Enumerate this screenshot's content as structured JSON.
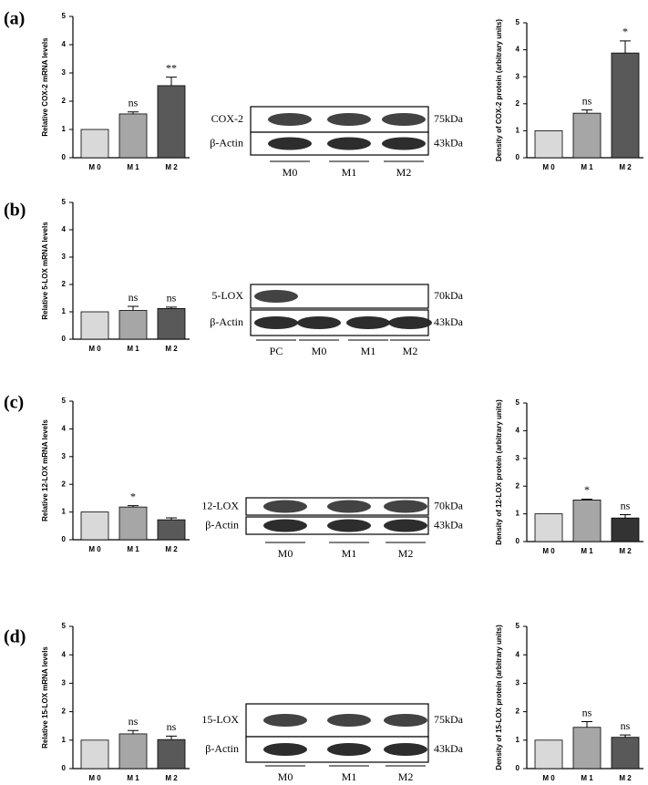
{
  "panel_labels": [
    "(a)",
    "(b)",
    "(c)",
    "(d)"
  ],
  "chart_data": [
    {
      "type": "bar",
      "y_label": "Relative COX-2 mRNA levels",
      "categories": [
        "M 0",
        "M 1",
        "M 2"
      ],
      "values": [
        1,
        1.55,
        2.55
      ],
      "errors": [
        0,
        0.07,
        0.3
      ],
      "colors": [
        "#d9d9d9",
        "#a6a6a6",
        "#595959"
      ],
      "ylim": [
        0,
        5
      ],
      "yticks": [
        0,
        1,
        2,
        3,
        4,
        5
      ],
      "annotations": [
        {
          "index": 1,
          "text": "ns"
        },
        {
          "index": 2,
          "text": "**"
        }
      ]
    },
    {
      "type": "bar",
      "y_label": "Density of COX-2 protein (arbitrary units)",
      "categories": [
        "M 0",
        "M 1",
        "M 2"
      ],
      "values": [
        1,
        1.65,
        3.88
      ],
      "errors": [
        0,
        0.12,
        0.45
      ],
      "colors": [
        "#d9d9d9",
        "#a6a6a6",
        "#595959"
      ],
      "ylim": [
        0,
        5
      ],
      "yticks": [
        0,
        1,
        2,
        3,
        4,
        5
      ],
      "annotations": [
        {
          "index": 1,
          "text": "ns"
        },
        {
          "index": 2,
          "text": "*"
        }
      ]
    },
    {
      "type": "bar",
      "y_label": "Relative 5-LOX mRNA levels",
      "categories": [
        "M 0",
        "M 1",
        "M 2"
      ],
      "values": [
        1,
        1.05,
        1.12
      ],
      "errors": [
        0,
        0.15,
        0.05
      ],
      "colors": [
        "#d9d9d9",
        "#a6a6a6",
        "#595959"
      ],
      "ylim": [
        0,
        5
      ],
      "yticks": [
        0,
        1,
        2,
        3,
        4,
        5
      ],
      "annotations": [
        {
          "index": 1,
          "text": "ns"
        },
        {
          "index": 2,
          "text": "ns"
        }
      ]
    },
    {
      "type": "bar",
      "y_label": "Relative 12-LOX mRNA levels",
      "categories": [
        "M 0",
        "M 1",
        "M 2"
      ],
      "values": [
        1,
        1.18,
        0.72
      ],
      "errors": [
        0,
        0.05,
        0.07
      ],
      "colors": [
        "#d9d9d9",
        "#a6a6a6",
        "#595959"
      ],
      "ylim": [
        0,
        5
      ],
      "yticks": [
        0,
        1,
        2,
        3,
        4,
        5
      ],
      "annotations": [
        {
          "index": 1,
          "text": "*"
        }
      ]
    },
    {
      "type": "bar",
      "y_label": "Density of 12-LOX protein (arbitrary units)",
      "categories": [
        "M 0",
        "M 1",
        "M 2"
      ],
      "values": [
        1,
        1.5,
        0.85
      ],
      "errors": [
        0,
        0.03,
        0.12
      ],
      "colors": [
        "#d9d9d9",
        "#a6a6a6",
        "#333333"
      ],
      "ylim": [
        0,
        5
      ],
      "yticks": [
        0,
        1,
        2,
        3,
        4,
        5
      ],
      "annotations": [
        {
          "index": 1,
          "text": "*"
        },
        {
          "index": 2,
          "text": "ns"
        }
      ]
    },
    {
      "type": "bar",
      "y_label": "Relative 15-LOX mRNA levels",
      "categories": [
        "M 0",
        "M 1",
        "M 2"
      ],
      "values": [
        1,
        1.22,
        1.02
      ],
      "errors": [
        0,
        0.12,
        0.12
      ],
      "colors": [
        "#d9d9d9",
        "#a6a6a6",
        "#595959"
      ],
      "ylim": [
        0,
        5
      ],
      "yticks": [
        0,
        1,
        2,
        3,
        4,
        5
      ],
      "annotations": [
        {
          "index": 1,
          "text": "ns"
        },
        {
          "index": 2,
          "text": "ns"
        }
      ]
    },
    {
      "type": "bar",
      "y_label": "Density of 15-LOX protein (arbitrary units)",
      "categories": [
        "M 0",
        "M 1",
        "M 2"
      ],
      "values": [
        1,
        1.45,
        1.1
      ],
      "errors": [
        0,
        0.2,
        0.08
      ],
      "colors": [
        "#d9d9d9",
        "#a6a6a6",
        "#595959"
      ],
      "ylim": [
        0,
        5
      ],
      "yticks": [
        0,
        1,
        2,
        3,
        4,
        5
      ],
      "annotations": [
        {
          "index": 1,
          "text": "ns"
        },
        {
          "index": 2,
          "text": "ns"
        }
      ]
    }
  ],
  "blots": [
    {
      "rows": [
        "COX-2",
        "β-Actin"
      ],
      "sizes": [
        "75kDa",
        "43kDa"
      ],
      "lanes": [
        "M0",
        "M1",
        "M2"
      ]
    },
    {
      "rows": [
        "5-LOX",
        "β-Actin"
      ],
      "sizes": [
        "70kDa",
        "43kDa"
      ],
      "lanes": [
        "PC",
        "M0",
        "M1",
        "M2"
      ]
    },
    {
      "rows": [
        "12-LOX",
        "β-Actin"
      ],
      "sizes": [
        "70kDa",
        "43kDa"
      ],
      "lanes": [
        "M0",
        "M1",
        "M2"
      ]
    },
    {
      "rows": [
        "15-LOX",
        "β-Actin"
      ],
      "sizes": [
        "75kDa",
        "43kDa"
      ],
      "lanes": [
        "M0",
        "M1",
        "M2"
      ]
    }
  ]
}
